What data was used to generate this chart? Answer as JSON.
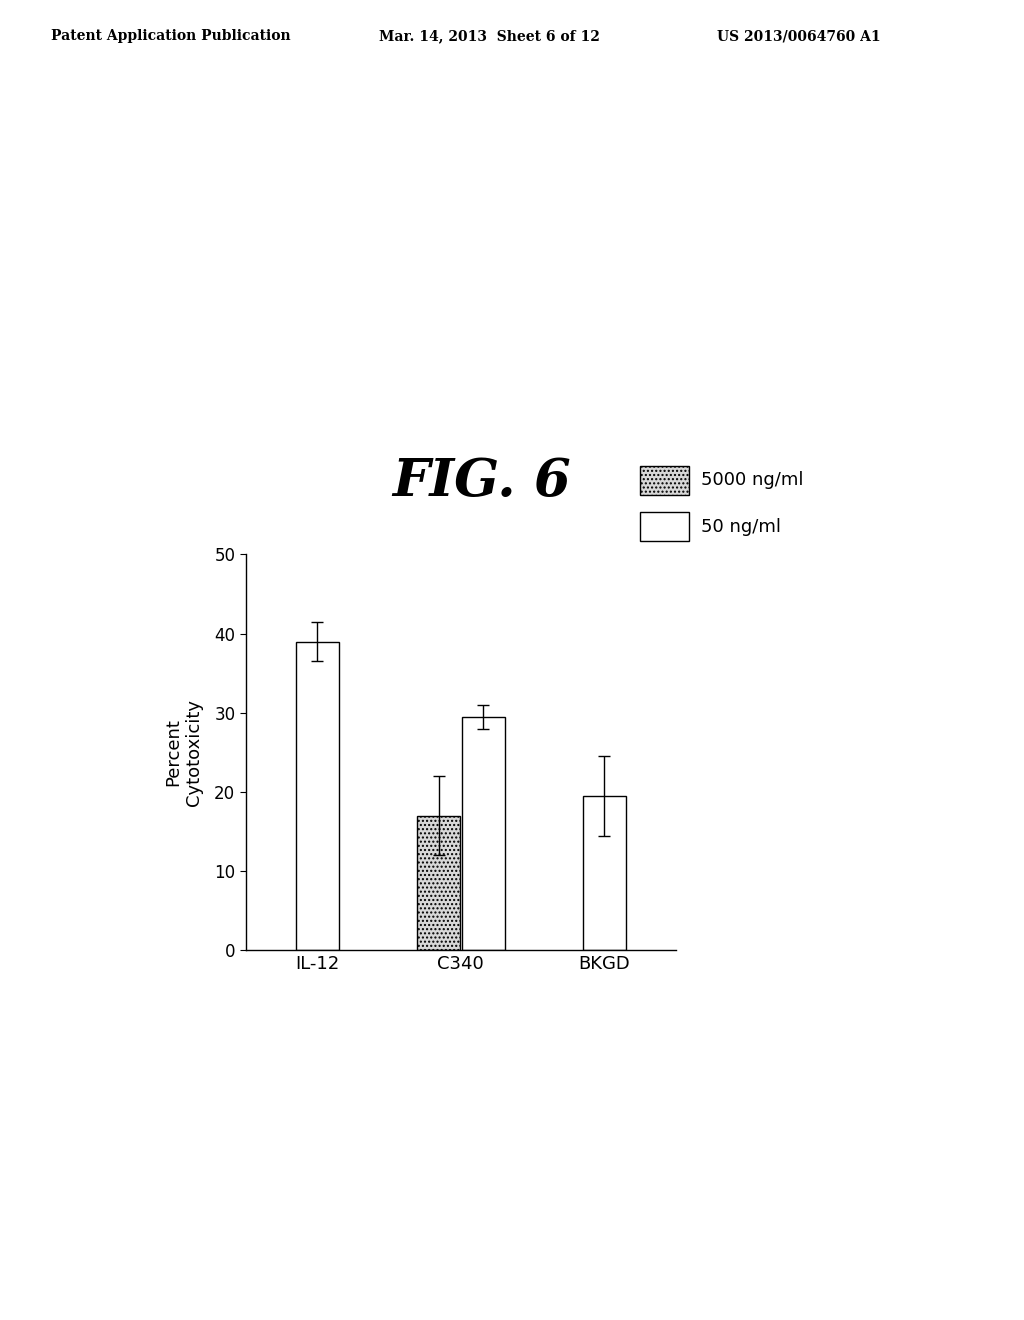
{
  "title": "FIG. 6",
  "categories": [
    "IL-12",
    "C340",
    "BKGD"
  ],
  "values_5000": [
    null,
    17.0,
    null
  ],
  "errors_5000": [
    null,
    5.0,
    null
  ],
  "values_50": [
    39.0,
    29.5,
    19.5
  ],
  "errors_50": [
    2.5,
    1.5,
    5.0
  ],
  "ylabel": "Percent\nCytotoxicity",
  "ylim": [
    0,
    50
  ],
  "yticks": [
    0,
    10,
    20,
    30,
    40,
    50
  ],
  "bar_width": 0.3,
  "background_color": "#ffffff",
  "header_left": "Patent Application Publication",
  "header_center": "Mar. 14, 2013  Sheet 6 of 12",
  "header_right": "US 2013/0064760 A1",
  "legend_label_5000": "5000 ng/ml",
  "legend_label_50": "50 ng/ml"
}
